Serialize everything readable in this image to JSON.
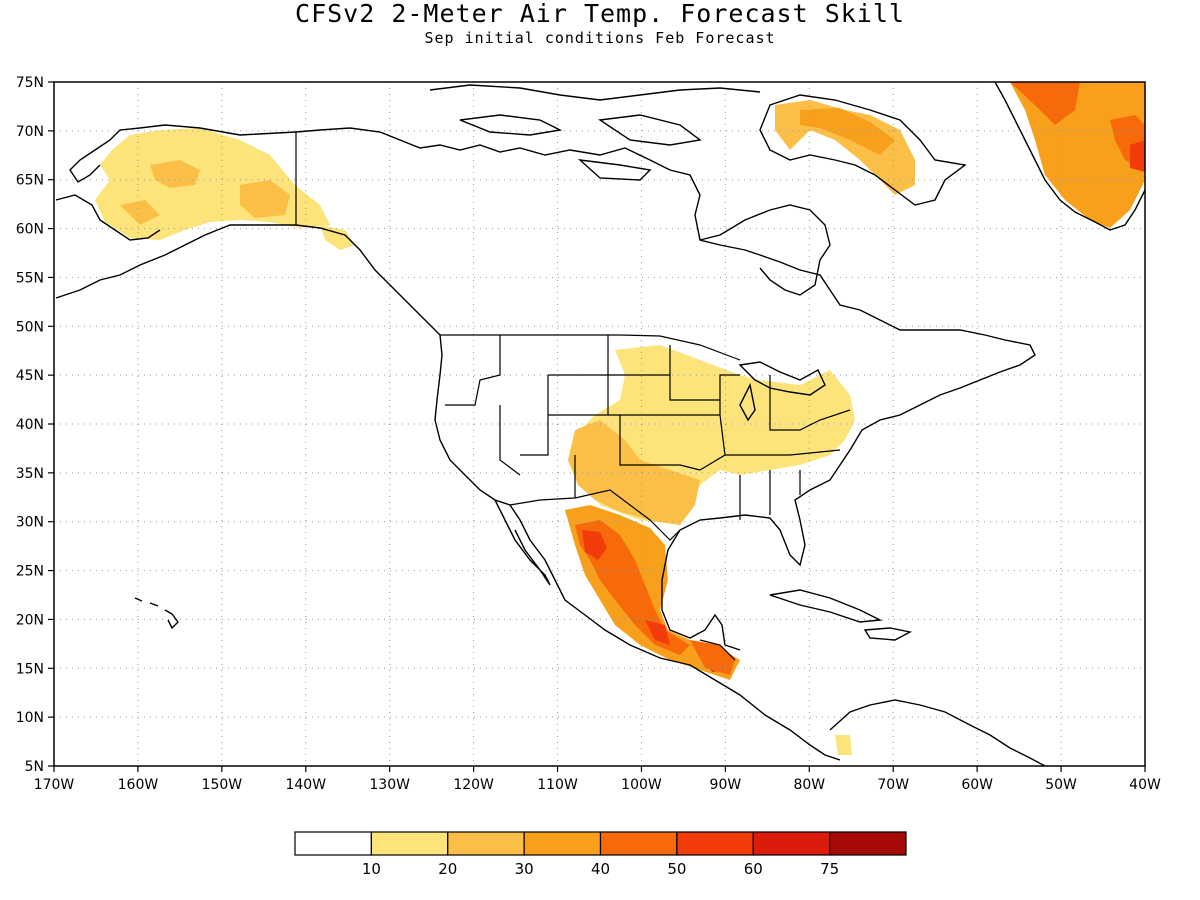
{
  "title": "CFSv2 2-Meter Air Temp. Forecast Skill",
  "subtitle": "Sep initial conditions  Feb Forecast",
  "map": {
    "lon_range": [
      -170,
      -40
    ],
    "lat_range": [
      5,
      75
    ],
    "lat_labels": [
      "75N",
      "70N",
      "65N",
      "60N",
      "55N",
      "50N",
      "45N",
      "40N",
      "35N",
      "30N",
      "25N",
      "20N",
      "15N",
      "10N",
      "5N"
    ],
    "lat_values": [
      75,
      70,
      65,
      60,
      55,
      50,
      45,
      40,
      35,
      30,
      25,
      20,
      15,
      10,
      5
    ],
    "lon_labels": [
      "170W",
      "160W",
      "150W",
      "140W",
      "130W",
      "120W",
      "110W",
      "100W",
      "90W",
      "80W",
      "70W",
      "60W",
      "50W",
      "40W"
    ],
    "lon_values": [
      -170,
      -160,
      -150,
      -140,
      -130,
      -120,
      -110,
      -100,
      -90,
      -80,
      -70,
      -60,
      -50,
      -40
    ],
    "grid": "dotted"
  },
  "colorbar": {
    "colors": [
      "#ffffff",
      "#fde47a",
      "#fbbf47",
      "#f8a01c",
      "#f66a0a",
      "#f23c09",
      "#db1c0b",
      "#a60a07"
    ],
    "labels": [
      "10",
      "20",
      "30",
      "40",
      "50",
      "60",
      "75"
    ]
  },
  "skill_regions": [
    {
      "name": "alaska",
      "level": 1
    },
    {
      "name": "alaska-core",
      "level": 2
    },
    {
      "name": "yukon-coast",
      "level": 1
    },
    {
      "name": "baffin-north",
      "level": 2
    },
    {
      "name": "baffin-core",
      "level": 3
    },
    {
      "name": "greenland",
      "level": 3
    },
    {
      "name": "greenland-east",
      "level": 4
    },
    {
      "name": "greenland-hot",
      "level": 5
    },
    {
      "name": "central-us",
      "level": 1
    },
    {
      "name": "southern-plains",
      "level": 2
    },
    {
      "name": "texas-mexico",
      "level": 3
    },
    {
      "name": "mexico-core",
      "level": 4
    },
    {
      "name": "mexico-hot",
      "level": 5
    },
    {
      "name": "central-america",
      "level": 4
    },
    {
      "name": "colombia",
      "level": 1
    }
  ]
}
